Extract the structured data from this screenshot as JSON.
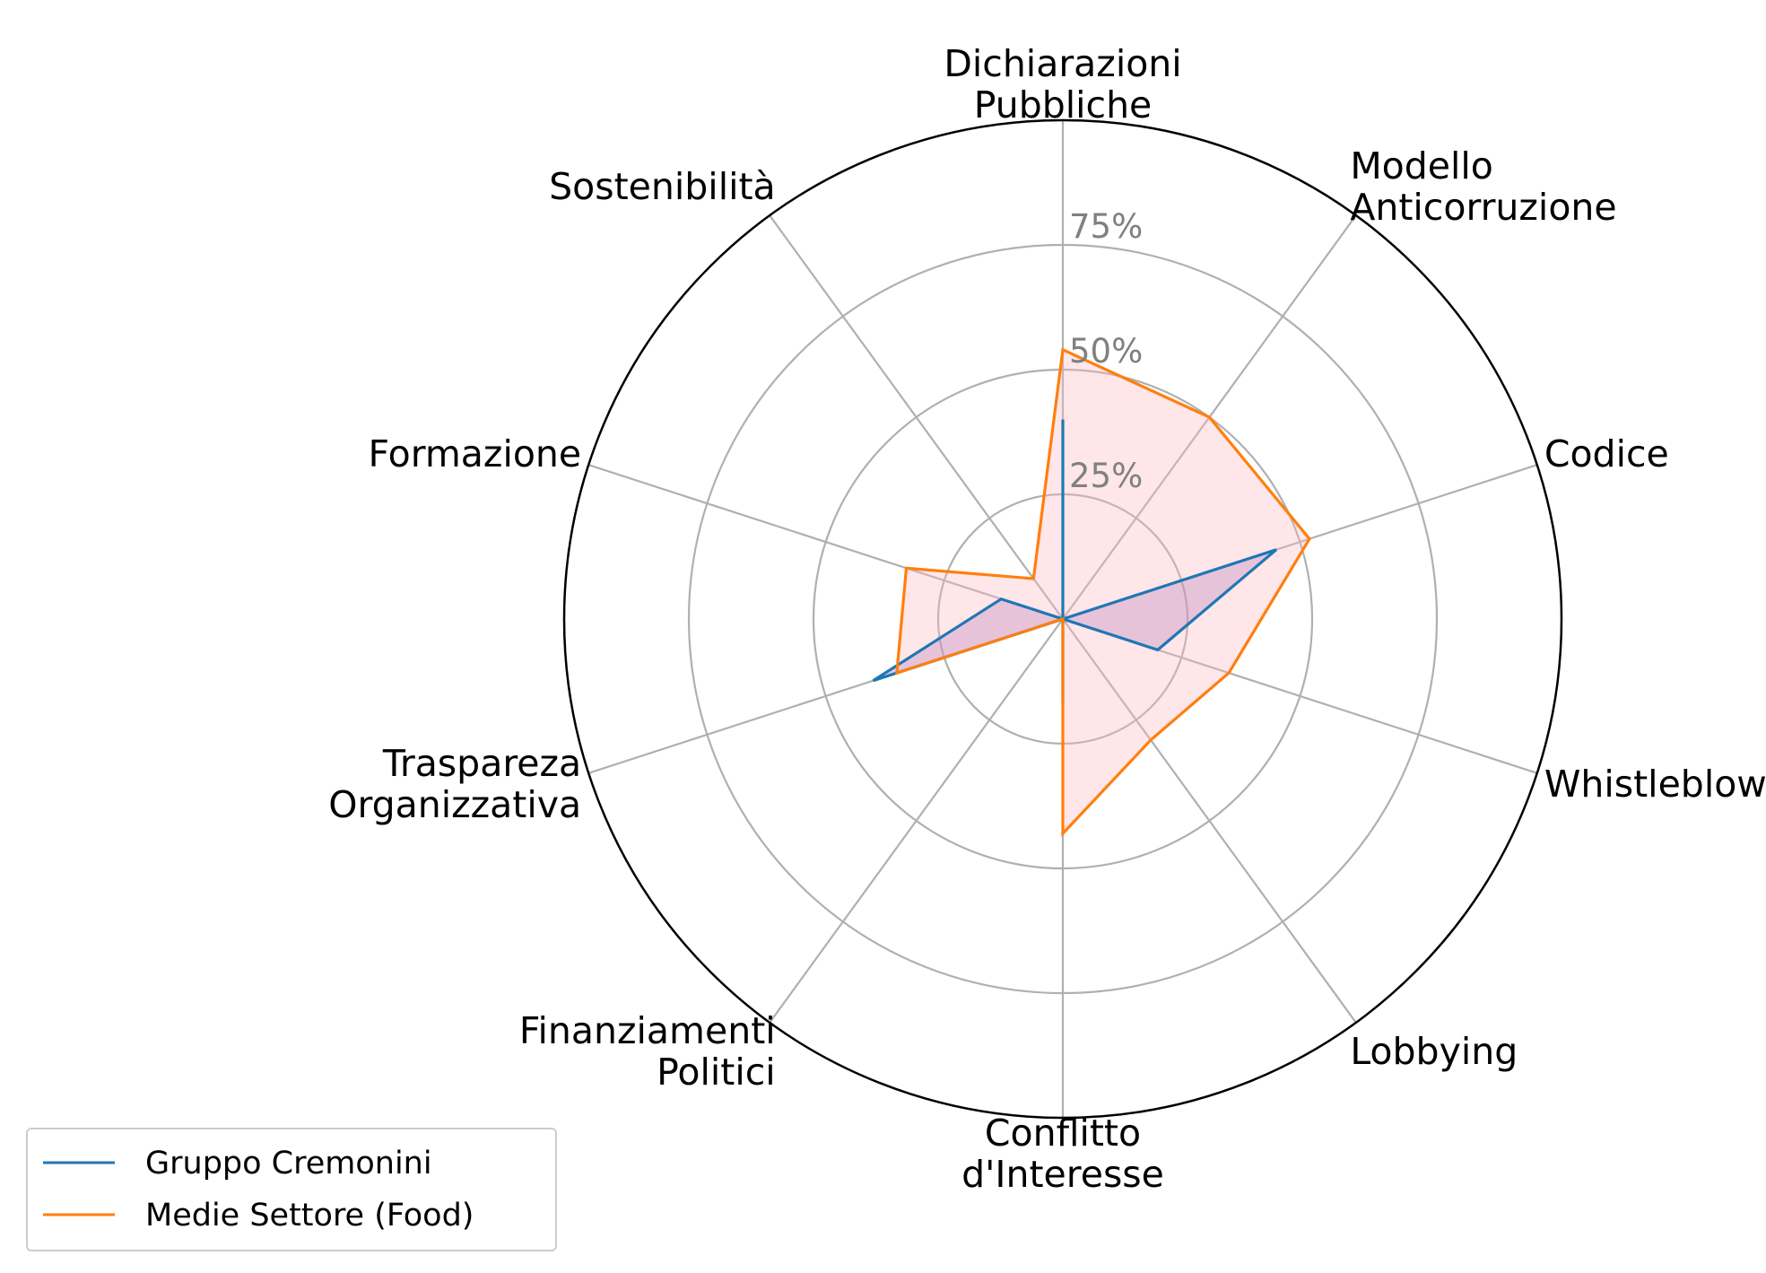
{
  "chart_data": {
    "type": "radar",
    "categories": [
      "Dichiarazioni\nPubbliche",
      "Modello\nAnticorruzione",
      "Codice",
      "Whistleblowing",
      "Lobbying",
      "Conflitto\nd'Interesse",
      "Finanziamenti\nPolitici",
      "Traspareza\nOrganizzativa",
      "Formazione",
      "Sostenibilità"
    ],
    "r_ticks": [
      25,
      50,
      75
    ],
    "r_tick_labels": [
      "25%",
      "50%",
      "75%"
    ],
    "rlim": [
      0,
      100
    ],
    "grid": true,
    "legend_position": "lower-left",
    "series": [
      {
        "name": "Gruppo Cremonini",
        "color": "#1f77b4",
        "fill": "#9467bd",
        "values": [
          40,
          0,
          45,
          20,
          0,
          17,
          0,
          40,
          13,
          0
        ]
      },
      {
        "name": "Medie Settore (Food)",
        "color": "#ff7f0e",
        "fill": "#ffb6c1",
        "values": [
          54,
          50,
          52,
          35,
          30,
          43,
          0,
          35,
          33,
          10
        ]
      }
    ]
  }
}
